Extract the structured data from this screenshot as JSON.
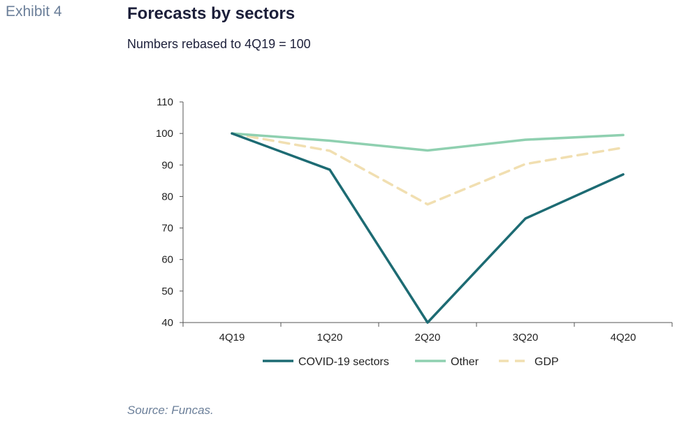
{
  "header": {
    "exhibit": "Exhibit 4",
    "title": "Forecasts by sectors",
    "subtitle": "Numbers rebased to 4Q19 = 100"
  },
  "footer": {
    "source": "Source: Funcas."
  },
  "chart_data": {
    "type": "line",
    "title": "Forecasts by sectors",
    "subtitle": "Numbers rebased to 4Q19 = 100",
    "xlabel": "",
    "ylabel": "",
    "categories": [
      "4Q19",
      "1Q20",
      "2Q20",
      "3Q20",
      "4Q20"
    ],
    "ylim": [
      40,
      110
    ],
    "yticks": [
      40,
      50,
      60,
      70,
      80,
      90,
      100,
      110
    ],
    "grid": false,
    "legend_position": "bottom",
    "series": [
      {
        "name": "COVID-19 sectors",
        "values": [
          100,
          88.5,
          40,
          73,
          87
        ],
        "color": "#1d6b73",
        "dash": false
      },
      {
        "name": "Other",
        "values": [
          100,
          97.7,
          94.6,
          98,
          99.5
        ],
        "color": "#8fd0b0",
        "dash": false
      },
      {
        "name": "GDP",
        "values": [
          100,
          94.5,
          77.5,
          90.3,
          95.5
        ],
        "color": "#f1dfb1",
        "dash": true
      }
    ]
  }
}
